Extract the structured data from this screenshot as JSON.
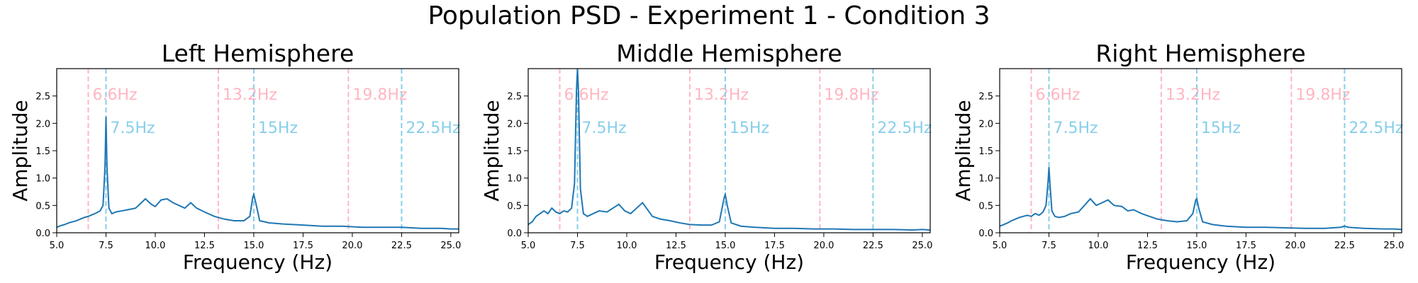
{
  "suptitle": "Population PSD - Experiment 1 - Condition 3",
  "colors": {
    "line": "#1f77b4",
    "pink": "#ffb6c1",
    "blue": "#87ceeb",
    "axis": "#000000"
  },
  "chart_data": [
    {
      "type": "line",
      "title": "Left Hemisphere",
      "xlabel": "Frequency (Hz)",
      "ylabel": "Amplitude",
      "xlim": [
        5.0,
        25.4
      ],
      "ylim": [
        0.0,
        3.0
      ],
      "xticks": [
        5.0,
        7.5,
        10.0,
        12.5,
        15.0,
        17.5,
        20.0,
        22.5,
        25.0
      ],
      "xtick_labels": [
        "5.0",
        "7.5",
        "10.0",
        "12.5",
        "15.0",
        "17.5",
        "20.0",
        "22.5",
        "25.0"
      ],
      "yticks": [
        0.0,
        0.5,
        1.0,
        1.5,
        2.0,
        2.5
      ],
      "ytick_labels": [
        "0.0",
        "0.5",
        "1.0",
        "1.5",
        "2.0",
        "2.5"
      ],
      "grid": false,
      "vlines": [
        {
          "x": 6.6,
          "label": "6.6Hz",
          "color": "pink"
        },
        {
          "x": 13.2,
          "label": "13.2Hz",
          "color": "pink"
        },
        {
          "x": 19.8,
          "label": "19.8Hz",
          "color": "pink"
        },
        {
          "x": 7.5,
          "label": "7.5Hz",
          "color": "blue"
        },
        {
          "x": 15.0,
          "label": "15Hz",
          "color": "blue"
        },
        {
          "x": 22.5,
          "label": "22.5Hz",
          "color": "blue"
        }
      ],
      "series": [
        {
          "points": [
            [
              5.0,
              0.1
            ],
            [
              5.2,
              0.13
            ],
            [
              5.4,
              0.15
            ],
            [
              5.6,
              0.18
            ],
            [
              5.8,
              0.2
            ],
            [
              6.0,
              0.22
            ],
            [
              6.2,
              0.25
            ],
            [
              6.4,
              0.28
            ],
            [
              6.6,
              0.3
            ],
            [
              6.8,
              0.33
            ],
            [
              7.0,
              0.36
            ],
            [
              7.2,
              0.4
            ],
            [
              7.35,
              0.5
            ],
            [
              7.45,
              1.2
            ],
            [
              7.5,
              2.12
            ],
            [
              7.55,
              1.2
            ],
            [
              7.65,
              0.45
            ],
            [
              7.8,
              0.35
            ],
            [
              8.0,
              0.38
            ],
            [
              8.3,
              0.4
            ],
            [
              8.6,
              0.42
            ],
            [
              9.0,
              0.45
            ],
            [
              9.3,
              0.55
            ],
            [
              9.5,
              0.62
            ],
            [
              9.8,
              0.52
            ],
            [
              10.0,
              0.48
            ],
            [
              10.3,
              0.6
            ],
            [
              10.6,
              0.62
            ],
            [
              10.9,
              0.55
            ],
            [
              11.2,
              0.5
            ],
            [
              11.5,
              0.45
            ],
            [
              11.8,
              0.55
            ],
            [
              12.1,
              0.45
            ],
            [
              12.5,
              0.38
            ],
            [
              13.0,
              0.3
            ],
            [
              13.5,
              0.25
            ],
            [
              14.0,
              0.22
            ],
            [
              14.5,
              0.22
            ],
            [
              14.8,
              0.3
            ],
            [
              14.95,
              0.65
            ],
            [
              15.0,
              0.7
            ],
            [
              15.1,
              0.55
            ],
            [
              15.3,
              0.22
            ],
            [
              15.8,
              0.18
            ],
            [
              16.5,
              0.16
            ],
            [
              17.5,
              0.14
            ],
            [
              18.5,
              0.12
            ],
            [
              19.5,
              0.12
            ],
            [
              20.5,
              0.1
            ],
            [
              21.5,
              0.1
            ],
            [
              22.5,
              0.1
            ],
            [
              23.5,
              0.08
            ],
            [
              24.5,
              0.08
            ],
            [
              25.0,
              0.07
            ],
            [
              25.4,
              0.07
            ]
          ]
        }
      ]
    },
    {
      "type": "line",
      "title": "Middle Hemisphere",
      "xlabel": "Frequency (Hz)",
      "ylabel": "Amplitude",
      "xlim": [
        5.0,
        25.4
      ],
      "ylim": [
        0.0,
        3.0
      ],
      "xticks": [
        5.0,
        7.5,
        10.0,
        12.5,
        15.0,
        17.5,
        20.0,
        22.5,
        25.0
      ],
      "xtick_labels": [
        "5.0",
        "7.5",
        "10.0",
        "12.5",
        "15.0",
        "17.5",
        "20.0",
        "22.5",
        "25.0"
      ],
      "yticks": [
        0.0,
        0.5,
        1.0,
        1.5,
        2.0,
        2.5
      ],
      "ytick_labels": [
        "0.0",
        "0.5",
        "1.0",
        "1.5",
        "2.0",
        "2.5"
      ],
      "grid": false,
      "vlines": [
        {
          "x": 6.6,
          "label": "6.6Hz",
          "color": "pink"
        },
        {
          "x": 13.2,
          "label": "13.2Hz",
          "color": "pink"
        },
        {
          "x": 19.8,
          "label": "19.8Hz",
          "color": "pink"
        },
        {
          "x": 7.5,
          "label": "7.5Hz",
          "color": "blue"
        },
        {
          "x": 15.0,
          "label": "15Hz",
          "color": "blue"
        },
        {
          "x": 22.5,
          "label": "22.5Hz",
          "color": "blue"
        }
      ],
      "series": [
        {
          "points": [
            [
              5.0,
              0.15
            ],
            [
              5.2,
              0.2
            ],
            [
              5.4,
              0.3
            ],
            [
              5.6,
              0.35
            ],
            [
              5.8,
              0.4
            ],
            [
              6.0,
              0.35
            ],
            [
              6.2,
              0.45
            ],
            [
              6.4,
              0.38
            ],
            [
              6.6,
              0.35
            ],
            [
              6.8,
              0.4
            ],
            [
              7.0,
              0.38
            ],
            [
              7.2,
              0.45
            ],
            [
              7.35,
              0.9
            ],
            [
              7.45,
              2.6
            ],
            [
              7.5,
              3.0
            ],
            [
              7.55,
              2.6
            ],
            [
              7.65,
              0.8
            ],
            [
              7.8,
              0.35
            ],
            [
              8.0,
              0.3
            ],
            [
              8.3,
              0.35
            ],
            [
              8.6,
              0.4
            ],
            [
              9.0,
              0.38
            ],
            [
              9.3,
              0.45
            ],
            [
              9.6,
              0.52
            ],
            [
              9.9,
              0.4
            ],
            [
              10.2,
              0.35
            ],
            [
              10.5,
              0.45
            ],
            [
              10.8,
              0.55
            ],
            [
              11.0,
              0.45
            ],
            [
              11.3,
              0.3
            ],
            [
              11.7,
              0.25
            ],
            [
              12.2,
              0.22
            ],
            [
              12.7,
              0.18
            ],
            [
              13.2,
              0.15
            ],
            [
              13.8,
              0.14
            ],
            [
              14.3,
              0.14
            ],
            [
              14.7,
              0.2
            ],
            [
              14.95,
              0.65
            ],
            [
              15.0,
              0.7
            ],
            [
              15.1,
              0.5
            ],
            [
              15.3,
              0.18
            ],
            [
              15.8,
              0.12
            ],
            [
              16.5,
              0.1
            ],
            [
              17.5,
              0.08
            ],
            [
              18.5,
              0.08
            ],
            [
              19.5,
              0.07
            ],
            [
              20.5,
              0.07
            ],
            [
              21.5,
              0.06
            ],
            [
              22.5,
              0.06
            ],
            [
              23.5,
              0.06
            ],
            [
              24.5,
              0.05
            ],
            [
              25.0,
              0.06
            ],
            [
              25.4,
              0.05
            ]
          ]
        }
      ]
    },
    {
      "type": "line",
      "title": "Right Hemisphere",
      "xlabel": "Frequency (Hz)",
      "ylabel": "Amplitude",
      "xlim": [
        5.0,
        25.4
      ],
      "ylim": [
        0.0,
        3.0
      ],
      "xticks": [
        5.0,
        7.5,
        10.0,
        12.5,
        15.0,
        17.5,
        20.0,
        22.5,
        25.0
      ],
      "xtick_labels": [
        "5.0",
        "7.5",
        "10.0",
        "12.5",
        "15.0",
        "17.5",
        "20.0",
        "22.5",
        "25.0"
      ],
      "yticks": [
        0.0,
        0.5,
        1.0,
        1.5,
        2.0,
        2.5
      ],
      "ytick_labels": [
        "0.0",
        "0.5",
        "1.0",
        "1.5",
        "2.0",
        "2.5"
      ],
      "grid": false,
      "vlines": [
        {
          "x": 6.6,
          "label": "6.6Hz",
          "color": "pink"
        },
        {
          "x": 13.2,
          "label": "13.2Hz",
          "color": "pink"
        },
        {
          "x": 19.8,
          "label": "19.8Hz",
          "color": "pink"
        },
        {
          "x": 7.5,
          "label": "7.5Hz",
          "color": "blue"
        },
        {
          "x": 15.0,
          "label": "15Hz",
          "color": "blue"
        },
        {
          "x": 22.5,
          "label": "22.5Hz",
          "color": "blue"
        }
      ],
      "series": [
        {
          "points": [
            [
              5.0,
              0.12
            ],
            [
              5.2,
              0.15
            ],
            [
              5.4,
              0.18
            ],
            [
              5.6,
              0.22
            ],
            [
              5.8,
              0.25
            ],
            [
              6.0,
              0.28
            ],
            [
              6.2,
              0.3
            ],
            [
              6.4,
              0.32
            ],
            [
              6.6,
              0.3
            ],
            [
              6.8,
              0.35
            ],
            [
              7.0,
              0.32
            ],
            [
              7.2,
              0.38
            ],
            [
              7.35,
              0.5
            ],
            [
              7.45,
              0.9
            ],
            [
              7.5,
              1.2
            ],
            [
              7.55,
              0.9
            ],
            [
              7.65,
              0.4
            ],
            [
              7.8,
              0.3
            ],
            [
              8.0,
              0.28
            ],
            [
              8.3,
              0.3
            ],
            [
              8.6,
              0.35
            ],
            [
              9.0,
              0.38
            ],
            [
              9.3,
              0.5
            ],
            [
              9.6,
              0.62
            ],
            [
              9.9,
              0.5
            ],
            [
              10.2,
              0.55
            ],
            [
              10.5,
              0.6
            ],
            [
              10.8,
              0.5
            ],
            [
              11.2,
              0.48
            ],
            [
              11.5,
              0.4
            ],
            [
              11.8,
              0.42
            ],
            [
              12.2,
              0.35
            ],
            [
              12.6,
              0.3
            ],
            [
              13.0,
              0.25
            ],
            [
              13.5,
              0.22
            ],
            [
              14.0,
              0.2
            ],
            [
              14.5,
              0.22
            ],
            [
              14.8,
              0.35
            ],
            [
              14.95,
              0.6
            ],
            [
              15.0,
              0.62
            ],
            [
              15.1,
              0.45
            ],
            [
              15.3,
              0.2
            ],
            [
              15.8,
              0.15
            ],
            [
              16.5,
              0.12
            ],
            [
              17.5,
              0.1
            ],
            [
              18.5,
              0.1
            ],
            [
              19.5,
              0.09
            ],
            [
              20.5,
              0.08
            ],
            [
              21.5,
              0.08
            ],
            [
              22.3,
              0.1
            ],
            [
              22.5,
              0.12
            ],
            [
              22.7,
              0.1
            ],
            [
              23.5,
              0.08
            ],
            [
              24.5,
              0.07
            ],
            [
              25.0,
              0.07
            ],
            [
              25.4,
              0.06
            ]
          ]
        }
      ]
    }
  ]
}
